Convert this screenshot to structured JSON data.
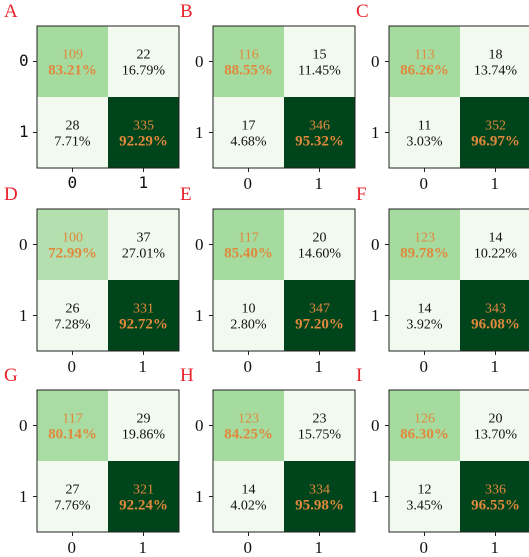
{
  "chart_data": [
    {
      "label": "A",
      "type": "heatmap",
      "row_labels": [
        "0",
        "1"
      ],
      "col_labels": [
        "0",
        "1"
      ],
      "counts": [
        [
          109,
          22
        ],
        [
          28,
          335
        ]
      ],
      "percents": [
        [
          "83.21%",
          "16.79%"
        ],
        [
          "7.71%",
          "92.29%"
        ]
      ]
    },
    {
      "label": "B",
      "type": "heatmap",
      "row_labels": [
        "0",
        "1"
      ],
      "col_labels": [
        "0",
        "1"
      ],
      "counts": [
        [
          116,
          15
        ],
        [
          17,
          346
        ]
      ],
      "percents": [
        [
          "88.55%",
          "11.45%"
        ],
        [
          "4.68%",
          "95.32%"
        ]
      ]
    },
    {
      "label": "C",
      "type": "heatmap",
      "row_labels": [
        "0",
        "1"
      ],
      "col_labels": [
        "0",
        "1"
      ],
      "counts": [
        [
          113,
          18
        ],
        [
          11,
          352
        ]
      ],
      "percents": [
        [
          "86.26%",
          "13.74%"
        ],
        [
          "3.03%",
          "96.97%"
        ]
      ]
    },
    {
      "label": "D",
      "type": "heatmap",
      "row_labels": [
        "0",
        "1"
      ],
      "col_labels": [
        "0",
        "1"
      ],
      "counts": [
        [
          100,
          37
        ],
        [
          26,
          331
        ]
      ],
      "percents": [
        [
          "72.99%",
          "27.01%"
        ],
        [
          "7.28%",
          "92.72%"
        ]
      ]
    },
    {
      "label": "E",
      "type": "heatmap",
      "row_labels": [
        "0",
        "1"
      ],
      "col_labels": [
        "0",
        "1"
      ],
      "counts": [
        [
          117,
          20
        ],
        [
          10,
          347
        ]
      ],
      "percents": [
        [
          "85.40%",
          "14.60%"
        ],
        [
          "2.80%",
          "97.20%"
        ]
      ]
    },
    {
      "label": "F",
      "type": "heatmap",
      "row_labels": [
        "0",
        "1"
      ],
      "col_labels": [
        "0",
        "1"
      ],
      "counts": [
        [
          123,
          14
        ],
        [
          14,
          343
        ]
      ],
      "percents": [
        [
          "89.78%",
          "10.22%"
        ],
        [
          "3.92%",
          "96.08%"
        ]
      ]
    },
    {
      "label": "G",
      "type": "heatmap",
      "row_labels": [
        "0",
        "1"
      ],
      "col_labels": [
        "0",
        "1"
      ],
      "counts": [
        [
          117,
          29
        ],
        [
          27,
          321
        ]
      ],
      "percents": [
        [
          "80.14%",
          "19.86%"
        ],
        [
          "7.76%",
          "92.24%"
        ]
      ]
    },
    {
      "label": "H",
      "type": "heatmap",
      "row_labels": [
        "0",
        "1"
      ],
      "col_labels": [
        "0",
        "1"
      ],
      "counts": [
        [
          123,
          23
        ],
        [
          14,
          334
        ]
      ],
      "percents": [
        [
          "84.25%",
          "15.75%"
        ],
        [
          "4.02%",
          "95.98%"
        ]
      ]
    },
    {
      "label": "I",
      "type": "heatmap",
      "row_labels": [
        "0",
        "1"
      ],
      "col_labels": [
        "0",
        "1"
      ],
      "counts": [
        [
          126,
          20
        ],
        [
          12,
          336
        ]
      ],
      "percents": [
        [
          "86.30%",
          "13.70%"
        ],
        [
          "3.45%",
          "96.55%"
        ]
      ]
    }
  ],
  "colors": {
    "cell_light": "#f2faf0",
    "cell_mid": "#a6dba0",
    "cell_dark": "#00441b",
    "diag_text": "#e0883c",
    "off_text": "#111111",
    "letter": "#e8232b"
  }
}
